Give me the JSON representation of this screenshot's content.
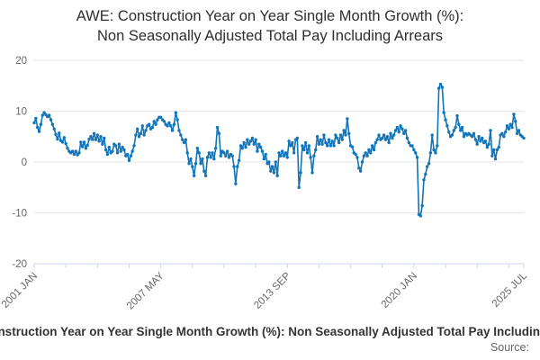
{
  "title": {
    "line1": "AWE: Construction Year on Year Single Month Growth (%):",
    "line2": "Non Seasonally Adjusted Total Pay Including Arrears"
  },
  "legend": {
    "label": "AWE: Construction Year on Year Single Month Growth (%): Non Seasonally Adjusted Total Pay Including Arrears"
  },
  "source": {
    "label": "Source:"
  },
  "colors": {
    "series": "#1274b9",
    "gridline": "#e6e6e6",
    "axis_line": "#ccd6eb",
    "tick_label": "#666666",
    "title_text": "#2e2e2e",
    "legend_text": "#333333",
    "source_text": "#666666"
  },
  "chart_data": {
    "type": "line",
    "title": "AWE: Construction Year on Year Single Month Growth (%): Non Seasonally Adjusted Total Pay Including Arrears",
    "xlabel": "",
    "ylabel": "",
    "ylim": [
      -20,
      20
    ],
    "y_ticks": [
      20,
      10,
      0,
      -10,
      -20
    ],
    "grid": "horizontal",
    "marker": "circle",
    "legend_position": "bottom",
    "x_label_rotation": -45,
    "x_range": {
      "start": "2001 JAN",
      "end": "2025 JUL",
      "interval": "monthly"
    },
    "x_tick_months": [
      0,
      19,
      38,
      57,
      76,
      95,
      114,
      133,
      152,
      171,
      190,
      209,
      228,
      247,
      266,
      285,
      294
    ],
    "x_labels": [
      {
        "month": 0,
        "label": "2001 JAN"
      },
      {
        "month": 76,
        "label": "2007 MAY"
      },
      {
        "month": 152,
        "label": "2013 SEP"
      },
      {
        "month": 228,
        "label": "2020 JAN"
      },
      {
        "month": 294,
        "label": "2025 JUL"
      }
    ],
    "values": [
      7.7,
      8.6,
      6.8,
      6.0,
      7.4,
      9.2,
      9.7,
      9.3,
      8.9,
      9.2,
      8.3,
      7.4,
      6.5,
      5.4,
      4.5,
      5.7,
      4.2,
      3.9,
      4.8,
      3.6,
      2.7,
      2.1,
      1.8,
      2.1,
      1.5,
      2.1,
      1.4,
      1.8,
      3.9,
      3.0,
      3.9,
      2.7,
      3.3,
      4.5,
      5.0,
      4.4,
      5.6,
      4.4,
      5.3,
      4.1,
      5.0,
      3.5,
      4.7,
      2.4,
      1.5,
      2.9,
      1.8,
      2.1,
      3.5,
      3.2,
      1.8,
      3.5,
      2.1,
      2.9,
      2.4,
      1.2,
      1.5,
      0.3,
      1.2,
      2.1,
      3.2,
      5.3,
      6.5,
      5.0,
      5.6,
      7.1,
      5.3,
      6.2,
      7.1,
      7.4,
      6.5,
      6.8,
      8.0,
      7.4,
      8.3,
      8.8,
      8.8,
      8.3,
      8.0,
      7.4,
      7.1,
      7.7,
      7.1,
      6.2,
      7.4,
      9.7,
      8.3,
      6.2,
      5.3,
      4.4,
      3.8,
      4.4,
      1.8,
      -0.3,
      0.6,
      -0.9,
      -2.7,
      -0.3,
      2.7,
      1.8,
      -0.3,
      0.6,
      -1.8,
      -2.7,
      0.9,
      1.8,
      0.9,
      1.8,
      0.6,
      2.7,
      6.8,
      5.6,
      1.2,
      2.1,
      1.8,
      1.2,
      2.1,
      0.9,
      1.5,
      1.2,
      -0.9,
      -4.3,
      -0.9,
      0.3,
      3.2,
      2.7,
      3.8,
      2.9,
      4.4,
      3.5,
      4.1,
      4.7,
      3.5,
      4.4,
      2.1,
      3.5,
      2.9,
      2.1,
      0.6,
      1.5,
      -0.3,
      0.0,
      -1.8,
      -0.9,
      -2.1,
      0.0,
      -2.7,
      1.8,
      1.2,
      2.1,
      1.2,
      1.8,
      0.9,
      4.1,
      3.2,
      3.8,
      1.8,
      4.4,
      4.7,
      -5.0,
      -2.1,
      3.2,
      2.4,
      3.8,
      1.8,
      3.2,
      0.9,
      -2.1,
      1.2,
      2.4,
      5.0,
      3.5,
      4.4,
      3.5,
      5.3,
      3.8,
      3.2,
      4.4,
      3.2,
      4.1,
      3.2,
      5.3,
      4.7,
      3.8,
      5.3,
      4.4,
      6.2,
      5.3,
      8.5,
      5.6,
      3.2,
      3.0,
      1.8,
      1.5,
      0.9,
      -1.2,
      -1.8,
      0.0,
      1.2,
      1.8,
      1.2,
      2.4,
      1.8,
      3.2,
      2.4,
      3.8,
      4.4,
      5.3,
      4.4,
      4.7,
      5.3,
      4.4,
      5.0,
      3.8,
      5.6,
      4.7,
      5.3,
      6.2,
      6.8,
      5.9,
      7.1,
      6.5,
      5.6,
      6.2,
      4.7,
      3.8,
      3.2,
      3.2,
      2.4,
      1.8,
      0.9,
      -10.3,
      -10.6,
      -8.6,
      -3.5,
      -2.4,
      -0.9,
      -0.3,
      1.8,
      5.3,
      2.4,
      1.8,
      3.2,
      14.5,
      15.3,
      14.7,
      9.7,
      8.3,
      7.1,
      5.9,
      5.0,
      5.3,
      6.2,
      6.8,
      9.1,
      7.4,
      6.2,
      6.8,
      5.0,
      5.6,
      5.3,
      5.6,
      5.3,
      5.0,
      5.6,
      4.4,
      3.5,
      5.0,
      4.1,
      4.7,
      3.8,
      4.1,
      2.9,
      3.5,
      6.2,
      1.2,
      2.4,
      0.6,
      2.4,
      2.9,
      5.3,
      5.6,
      5.0,
      5.9,
      7.1,
      6.5,
      7.4,
      6.8,
      9.4,
      8.0,
      5.6,
      6.2,
      5.3,
      5.0,
      4.7
    ]
  }
}
